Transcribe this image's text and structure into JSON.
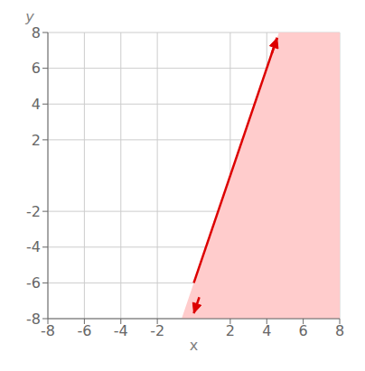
{
  "chart_data": {
    "type": "line",
    "xlabel": "x",
    "ylabel": "y",
    "xlim": [
      -8,
      8
    ],
    "ylim": [
      -8,
      8
    ],
    "xticks": [
      -8,
      -6,
      -4,
      -2,
      2,
      4,
      6,
      8
    ],
    "yticks": [
      -8,
      -6,
      -4,
      -2,
      2,
      4,
      6,
      8
    ],
    "grid": true,
    "x": [
      0,
      4.567
    ],
    "values": [
      -6,
      7.701
    ],
    "color": "#dd0000",
    "shaded_region": {
      "x": [
        -0.6666666666666666,
        4.666666666666667,
        8,
        8,
        -0.6666666666666666
      ],
      "y": [
        -8,
        8,
        8,
        -8,
        -8
      ],
      "color": "#ffcccc"
    },
    "arrows": [
      {
        "from": [
          0.3,
          -6.8
        ],
        "to": [
          0.0,
          -7.7
        ]
      },
      {
        "from": [
          4.267,
          6.8
        ],
        "to": [
          4.567,
          7.7
        ]
      }
    ]
  }
}
